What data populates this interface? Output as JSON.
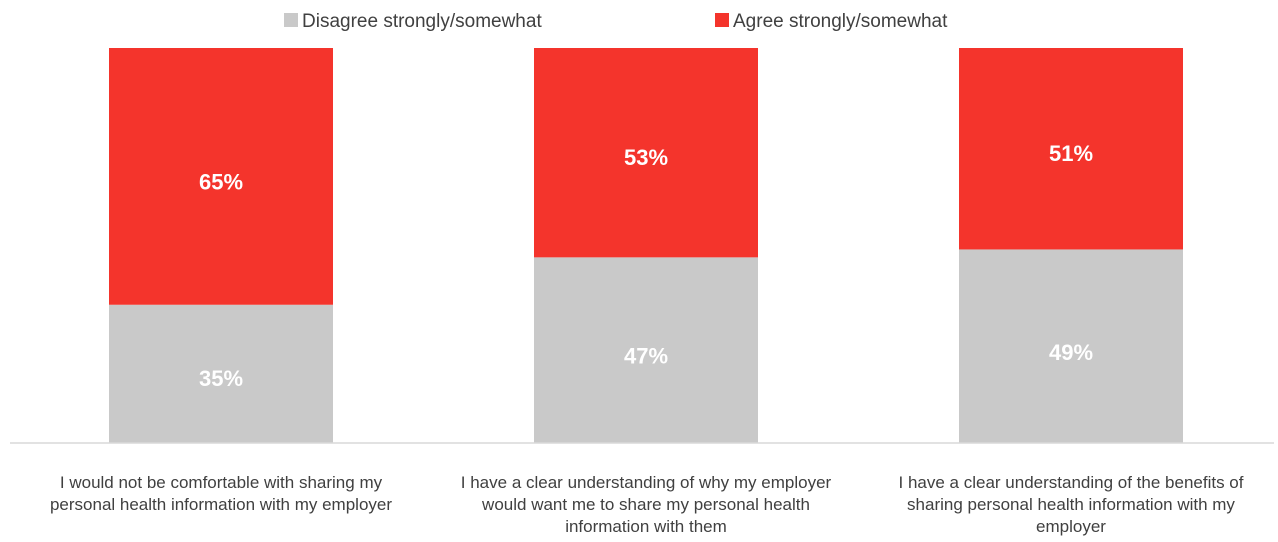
{
  "chart_data": {
    "type": "bar",
    "stacked": true,
    "percent_stacked": true,
    "categories": [
      "I would not be comfortable with sharing my personal health information with my employer",
      "I have a clear understanding of why my employer would want me to share my personal health information with them",
      "I have a clear understanding of the benefits of sharing personal health information with my employer"
    ],
    "category_lines": [
      [
        "I would not be comfortable with sharing my",
        "personal health information with my employer"
      ],
      [
        "I have a clear understanding of why my employer",
        "would want me to share my personal health",
        "information with them"
      ],
      [
        "I have a clear understanding of the benefits of",
        "sharing personal health information with my",
        "employer"
      ]
    ],
    "series": [
      {
        "name": "Disagree strongly/somewhat",
        "color": "#c9c9c9",
        "values": [
          35,
          47,
          49
        ],
        "labels": [
          "35%",
          "47%",
          "49%"
        ]
      },
      {
        "name": "Agree strongly/somewhat",
        "color": "#f4342c",
        "values": [
          65,
          53,
          51
        ],
        "labels": [
          "65%",
          "53%",
          "51%"
        ]
      }
    ],
    "ylim": [
      0,
      100
    ],
    "legend_position": "top",
    "grid": false,
    "title": "",
    "xlabel": "",
    "ylabel": ""
  }
}
